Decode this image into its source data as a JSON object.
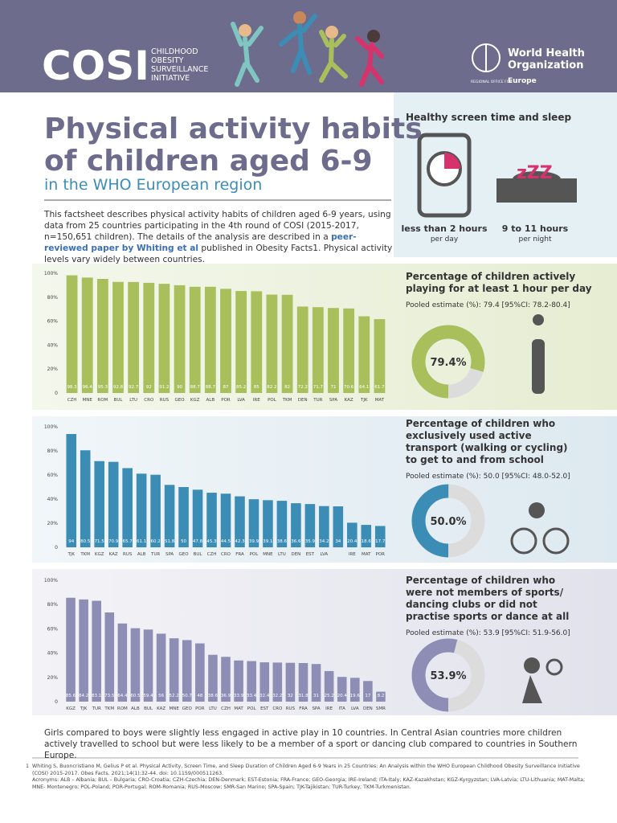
{
  "header": {
    "logo": "COSI",
    "initiative": [
      "CHILDHOOD",
      "OBESITY",
      "SURVEILLANCE",
      "INITIATIVE"
    ],
    "org": [
      "World Health",
      "Organization"
    ],
    "office": "REGIONAL OFFICE FOR",
    "region": "Europe"
  },
  "title": [
    "Physical activity habits",
    "of children aged 6-9"
  ],
  "subtitle": "in the WHO European region",
  "intro": {
    "before": "This factsheet describes physical activity habits of children aged 6-9 years, using data from 25 countries participating in the 4th round of COSI (2015-2017, n=150,651 children). The details of the analysis are described in a ",
    "link": "peer-reviewed paper by Whiting et al",
    "after": " published in Obesity Facts1. Physical activity levels vary widely between countries."
  },
  "screen_sleep": {
    "title": "Healthy screen time and sleep",
    "icon_text": "zZZ",
    "items": [
      {
        "label": "less than 2 hours",
        "sub": "per day"
      },
      {
        "label": "9 to 11 hours",
        "sub": "per night"
      }
    ]
  },
  "chart_data": [
    {
      "type": "bar",
      "color": "#a9bf5c",
      "ylim": [
        0,
        100
      ],
      "yticks": [
        0,
        {
          "value": 20,
          "label": "20%"
        },
        {
          "value": 40,
          "label": "40%"
        },
        {
          "value": 60,
          "label": "60%"
        },
        {
          "value": 80,
          "label": "80%"
        },
        {
          "value": 100,
          "label": "100%"
        }
      ],
      "categories": [
        "CZH",
        "MNE",
        "ROM",
        "BUL",
        "LTU",
        "CRO",
        "RUS",
        "GEO",
        "KGZ",
        "ALB",
        "POR",
        "LVA",
        "IRE",
        "POL",
        "TKM",
        "DEN",
        "TUR",
        "SPA",
        "KAZ",
        "TJK",
        "MAT"
      ],
      "values": [
        98.3,
        96.4,
        95.3,
        92.8,
        92.7,
        92.0,
        91.2,
        90.0,
        88.7,
        88.7,
        87.0,
        85.2,
        85.0,
        82.2,
        82.0,
        72.2,
        71.7,
        71.0,
        70.6,
        64.1,
        61.7
      ]
    },
    {
      "type": "bar",
      "color": "#3b8db5",
      "ylim": [
        0,
        100
      ],
      "yticks": [
        0,
        {
          "value": 20,
          "label": "20%"
        },
        {
          "value": 40,
          "label": "40%"
        },
        {
          "value": 60,
          "label": "60%"
        },
        {
          "value": 80,
          "label": "80%"
        },
        {
          "value": 100,
          "label": "100%"
        }
      ],
      "categories": [
        "TJK",
        "TKM",
        "KGZ",
        "KAZ",
        "RUS",
        "ALB",
        "TUR",
        "SPA",
        "GEO",
        "BUL",
        "CZH",
        "CRO",
        "FRA",
        "POL",
        "MNE",
        "LTU",
        "DEN",
        "EST",
        "LVA",
        null,
        "IRE",
        "MAT",
        "POR"
      ],
      "values": [
        94.0,
        80.5,
        71.5,
        70.9,
        65.7,
        61.1,
        60.2,
        51.8,
        50.0,
        47.8,
        45.3,
        44.5,
        42.3,
        39.9,
        39.1,
        38.6,
        36.6,
        35.9,
        34.2,
        34.0,
        20.4,
        18.6,
        17.7
      ]
    },
    {
      "type": "bar",
      "color": "#8d8db5",
      "ylim": [
        0,
        100
      ],
      "yticks": [
        0,
        {
          "value": 20,
          "label": "20%"
        },
        {
          "value": 40,
          "label": "40%"
        },
        {
          "value": 60,
          "label": "60%"
        },
        {
          "value": 80,
          "label": "80%"
        },
        {
          "value": 100,
          "label": "100%"
        }
      ],
      "categories": [
        "KGZ",
        "TJK",
        "TUR",
        "TKM",
        "ROM",
        "ALB",
        "BUL",
        "KAZ",
        "MNE",
        "GEO",
        "POR",
        "LTU",
        "CZH",
        "MAT",
        "POL",
        "EST",
        "CRO",
        "RUS",
        "FRA",
        "SPA",
        "IRE",
        "ITA",
        "LVA",
        "DEN",
        "SMR"
      ],
      "values": [
        85.6,
        84.2,
        83.1,
        73.5,
        64.4,
        60.5,
        59.4,
        56.0,
        52.2,
        50.7,
        48.0,
        38.6,
        36.9,
        33.9,
        33.4,
        32.4,
        32.2,
        32.0,
        31.8,
        31.0,
        25.2,
        20.4,
        19.6,
        17.0,
        8.2
      ]
    }
  ],
  "panels": [
    {
      "title": [
        "Percentage of children actively",
        "playing for at least 1 hour per day"
      ],
      "estimate": "Pooled estimate (%): 79.4 [95%CI: 78.2-80.4]",
      "value": 79.4,
      "value_label": "79.4%"
    },
    {
      "title": [
        "Percentage of children who",
        "exclusively used active",
        "transport (walking or cycling)",
        "to get to and from school"
      ],
      "estimate": "Pooled estimate (%): 50.0 [95%CI: 48.0-52.0]",
      "value": 50.0,
      "value_label": "50.0%"
    },
    {
      "title": [
        "Percentage of children who",
        "were not members of sports/",
        "dancing clubs or did not",
        "practise sports or dance at all"
      ],
      "estimate": "Pooled estimate (%): 53.9 [95%CI: 51.9-56.0]",
      "value": 53.9,
      "value_label": "53.9%"
    }
  ],
  "summary": "Girls compared to boys were slightly less engaged in active play in 10 countries. In Central Asian countries more children actively travelled to school but were less likely to be a member of a sport or dancing club compared to countries in Southern Europe.",
  "footnote": {
    "marker": "1",
    "reference": "Whiting S, Buoncristiano M, Gelius P et al. Physical Activity, Screen Time, and Sleep Duration of Children Aged 6-9 Years in 25 Countries: An Analysis within the WHO European Childhood Obesity Surveillance Initiative (COSI) 2015-2017. Obes Facts. 2021;14(1):32-44. doi: 10.1159/000511263.",
    "acronyms": "Acronyms: ALB – Albania; BUL – Bulgaria; CRO-Croatia; CZH-Czechia; DEN-Denmark; EST-Estonia; FRA-France; GEO-Georgia; IRE-Ireland; ITA-Italy; KAZ-Kazakhstan; KGZ-Kyrgyzstan; LVA-Latvia; LTU-Lithuania; MAT-Malta; MNE- Montenegro; POL-Poland; POR-Portugal; ROM-Romania; RUS-Moscow; SMR-San Marino; SPA-Spain; TJK-Tajikistan; TUR-Turkey; TKM-Turkmenistan."
  }
}
